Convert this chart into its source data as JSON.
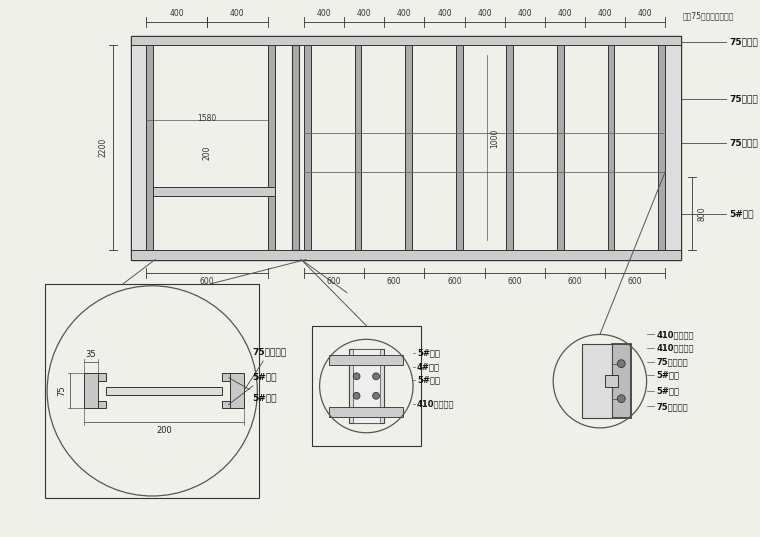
{
  "bg_color": "#f0f0eb",
  "line_color": "#555555",
  "dark_line": "#222222",
  "title_main": "风雨75系列轻钢龙骨墙",
  "ann_right": [
    "75顶龙龙",
    "75轻钢龙",
    "75轻钢龙",
    "5#槽钢"
  ],
  "label_35": "35",
  "label_75": "75",
  "label_200": "200",
  "label_75keel": "75轻钢龙骨",
  "label_5groove1": "5#槽钢",
  "label_5groove2": "5#槽钢",
  "label_410bolt": "410膨胀螺栓",
  "label_5angle": "5#角铁",
  "label_4fang": "4#方管",
  "label_5groove_top": "5#槽钢",
  "ann_right2": [
    "410膨胀螺栓",
    "410膨胀螺栓",
    "75顶天龙骨",
    "5#角铁",
    "5#槽钢",
    "75轻钢龙骨"
  ],
  "ann_center": [
    "5#槽钢",
    "4#方管",
    "5#角铁",
    "410膨胀螺栓"
  ]
}
